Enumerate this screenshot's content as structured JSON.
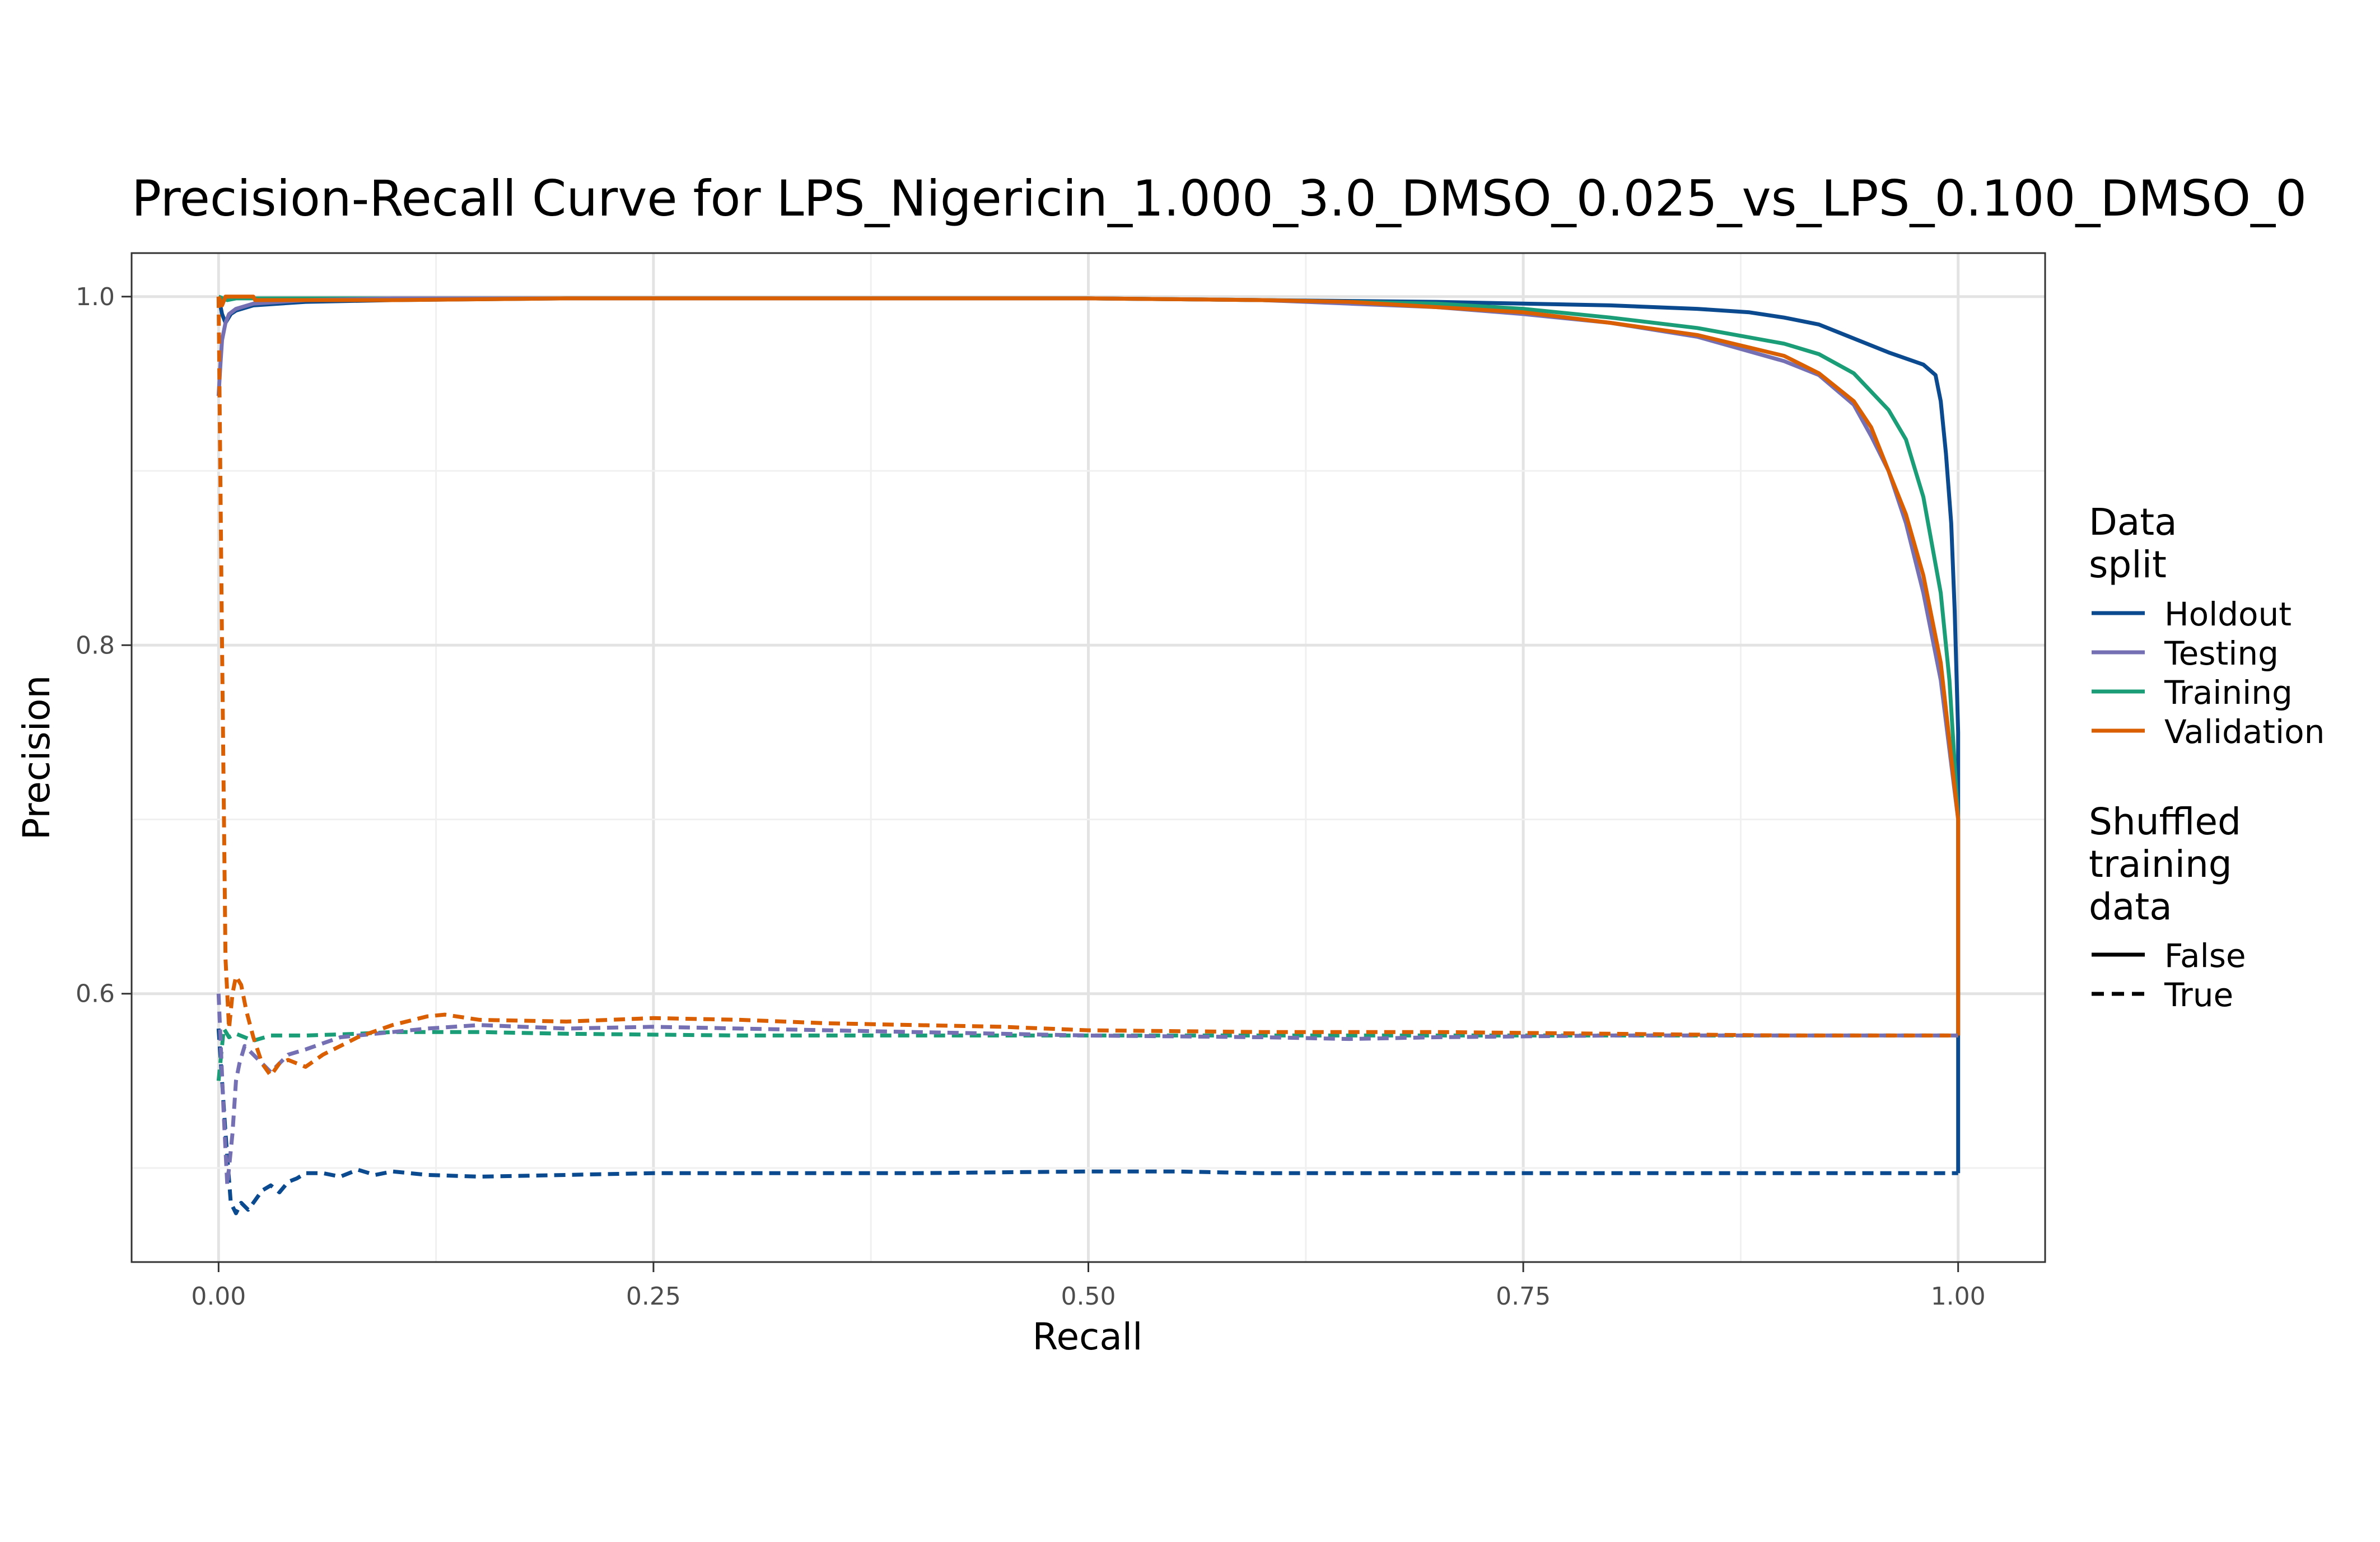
{
  "chart_data": {
    "type": "line",
    "title": "Precision-Recall Curve for LPS_Nigericin_1.000_3.0_DMSO_0.025_vs_LPS_0.100_DMSO_0",
    "xlabel": "Recall",
    "ylabel": "Precision",
    "xlim": [
      -0.05,
      1.05
    ],
    "ylim": [
      0.446,
      1.025
    ],
    "x_ticks": [
      0.0,
      0.25,
      0.5,
      0.75,
      1.0
    ],
    "x_tick_labels": [
      "0.00",
      "0.25",
      "0.50",
      "0.75",
      "1.00"
    ],
    "y_ticks": [
      0.6,
      0.8,
      1.0
    ],
    "y_tick_labels": [
      "0.6",
      "0.8",
      "1.0"
    ],
    "grid": true,
    "legend_placement": "right",
    "legend": {
      "color_title_lines": [
        "Data",
        "split"
      ],
      "color_entries": [
        {
          "label": "Holdout",
          "color": "#0b4a8f"
        },
        {
          "label": "Testing",
          "color": "#7570b3"
        },
        {
          "label": "Training",
          "color": "#1b9e77"
        },
        {
          "label": "Validation",
          "color": "#d95f02"
        }
      ],
      "linetype_title_lines": [
        "Shuffled",
        "training",
        "data"
      ],
      "linetype_entries": [
        {
          "label": "False",
          "dash": "solid"
        },
        {
          "label": "True",
          "dash": "dashed"
        }
      ]
    },
    "series": [
      {
        "split": "Holdout",
        "shuffled": "False",
        "color": "#0b4a8f",
        "points": [
          [
            0.0,
            1.0
          ],
          [
            0.002,
            0.99
          ],
          [
            0.004,
            0.985
          ],
          [
            0.007,
            0.99
          ],
          [
            0.01,
            0.992
          ],
          [
            0.02,
            0.995
          ],
          [
            0.05,
            0.997
          ],
          [
            0.1,
            0.998
          ],
          [
            0.2,
            0.999
          ],
          [
            0.3,
            0.999
          ],
          [
            0.4,
            0.999
          ],
          [
            0.5,
            0.999
          ],
          [
            0.6,
            0.998
          ],
          [
            0.7,
            0.997
          ],
          [
            0.75,
            0.996
          ],
          [
            0.8,
            0.995
          ],
          [
            0.85,
            0.993
          ],
          [
            0.88,
            0.991
          ],
          [
            0.9,
            0.988
          ],
          [
            0.92,
            0.984
          ],
          [
            0.94,
            0.976
          ],
          [
            0.96,
            0.968
          ],
          [
            0.98,
            0.961
          ],
          [
            0.987,
            0.955
          ],
          [
            0.99,
            0.94
          ],
          [
            0.993,
            0.91
          ],
          [
            0.996,
            0.87
          ],
          [
            0.998,
            0.82
          ],
          [
            1.0,
            0.75
          ],
          [
            1.0,
            0.497
          ]
        ]
      },
      {
        "split": "Training",
        "shuffled": "False",
        "color": "#1b9e77",
        "points": [
          [
            0.0,
            1.0
          ],
          [
            0.005,
            0.998
          ],
          [
            0.01,
            0.999
          ],
          [
            0.05,
            0.999
          ],
          [
            0.1,
            0.999
          ],
          [
            0.2,
            0.999
          ],
          [
            0.3,
            0.999
          ],
          [
            0.4,
            0.999
          ],
          [
            0.5,
            0.999
          ],
          [
            0.6,
            0.998
          ],
          [
            0.65,
            0.997
          ],
          [
            0.7,
            0.996
          ],
          [
            0.75,
            0.993
          ],
          [
            0.8,
            0.988
          ],
          [
            0.85,
            0.982
          ],
          [
            0.9,
            0.973
          ],
          [
            0.92,
            0.967
          ],
          [
            0.94,
            0.956
          ],
          [
            0.96,
            0.935
          ],
          [
            0.97,
            0.918
          ],
          [
            0.98,
            0.885
          ],
          [
            0.99,
            0.83
          ],
          [
            0.995,
            0.78
          ],
          [
            1.0,
            0.7
          ],
          [
            1.0,
            0.576
          ]
        ]
      },
      {
        "split": "Testing",
        "shuffled": "False",
        "color": "#7570b3",
        "points": [
          [
            0.0,
            0.943
          ],
          [
            0.001,
            0.96
          ],
          [
            0.002,
            0.975
          ],
          [
            0.004,
            0.985
          ],
          [
            0.006,
            0.99
          ],
          [
            0.01,
            0.993
          ],
          [
            0.02,
            0.996
          ],
          [
            0.05,
            0.998
          ],
          [
            0.1,
            0.999
          ],
          [
            0.3,
            0.999
          ],
          [
            0.5,
            0.999
          ],
          [
            0.6,
            0.998
          ],
          [
            0.65,
            0.996
          ],
          [
            0.7,
            0.994
          ],
          [
            0.75,
            0.99
          ],
          [
            0.8,
            0.985
          ],
          [
            0.85,
            0.977
          ],
          [
            0.9,
            0.963
          ],
          [
            0.92,
            0.955
          ],
          [
            0.94,
            0.938
          ],
          [
            0.95,
            0.92
          ],
          [
            0.96,
            0.9
          ],
          [
            0.97,
            0.87
          ],
          [
            0.98,
            0.83
          ],
          [
            0.99,
            0.78
          ],
          [
            1.0,
            0.7
          ],
          [
            1.0,
            0.576
          ]
        ]
      },
      {
        "split": "Validation",
        "shuffled": "False",
        "color": "#d95f02",
        "points": [
          [
            0.0,
            1.0
          ],
          [
            0.002,
            0.995
          ],
          [
            0.004,
            1.0
          ],
          [
            0.02,
            1.0
          ],
          [
            0.021,
            0.998
          ],
          [
            0.05,
            0.998
          ],
          [
            0.1,
            0.998
          ],
          [
            0.2,
            0.999
          ],
          [
            0.3,
            0.999
          ],
          [
            0.4,
            0.999
          ],
          [
            0.5,
            0.999
          ],
          [
            0.6,
            0.998
          ],
          [
            0.65,
            0.997
          ],
          [
            0.7,
            0.994
          ],
          [
            0.75,
            0.991
          ],
          [
            0.8,
            0.985
          ],
          [
            0.85,
            0.978
          ],
          [
            0.9,
            0.966
          ],
          [
            0.92,
            0.956
          ],
          [
            0.94,
            0.94
          ],
          [
            0.95,
            0.925
          ],
          [
            0.96,
            0.9
          ],
          [
            0.97,
            0.875
          ],
          [
            0.98,
            0.84
          ],
          [
            0.99,
            0.79
          ],
          [
            1.0,
            0.7
          ],
          [
            1.0,
            0.576
          ]
        ]
      },
      {
        "split": "Holdout",
        "shuffled": "True",
        "color": "#0b4a8f",
        "points": [
          [
            0.0,
            0.58
          ],
          [
            0.004,
            0.52
          ],
          [
            0.007,
            0.48
          ],
          [
            0.01,
            0.474
          ],
          [
            0.013,
            0.48
          ],
          [
            0.017,
            0.476
          ],
          [
            0.02,
            0.48
          ],
          [
            0.025,
            0.487
          ],
          [
            0.03,
            0.49
          ],
          [
            0.035,
            0.486
          ],
          [
            0.04,
            0.492
          ],
          [
            0.045,
            0.494
          ],
          [
            0.05,
            0.497
          ],
          [
            0.06,
            0.497
          ],
          [
            0.07,
            0.495
          ],
          [
            0.08,
            0.499
          ],
          [
            0.09,
            0.496
          ],
          [
            0.1,
            0.498
          ],
          [
            0.12,
            0.496
          ],
          [
            0.15,
            0.495
          ],
          [
            0.2,
            0.496
          ],
          [
            0.25,
            0.497
          ],
          [
            0.3,
            0.497
          ],
          [
            0.4,
            0.497
          ],
          [
            0.5,
            0.498
          ],
          [
            0.55,
            0.498
          ],
          [
            0.6,
            0.497
          ],
          [
            0.7,
            0.497
          ],
          [
            0.8,
            0.497
          ],
          [
            0.9,
            0.497
          ],
          [
            1.0,
            0.497
          ]
        ]
      },
      {
        "split": "Training",
        "shuffled": "True",
        "color": "#1b9e77",
        "points": [
          [
            0.0,
            0.55
          ],
          [
            0.003,
            0.58
          ],
          [
            0.006,
            0.575
          ],
          [
            0.01,
            0.577
          ],
          [
            0.02,
            0.573
          ],
          [
            0.03,
            0.576
          ],
          [
            0.05,
            0.576
          ],
          [
            0.08,
            0.577
          ],
          [
            0.1,
            0.578
          ],
          [
            0.15,
            0.578
          ],
          [
            0.2,
            0.577
          ],
          [
            0.3,
            0.576
          ],
          [
            0.4,
            0.576
          ],
          [
            0.5,
            0.576
          ],
          [
            0.6,
            0.576
          ],
          [
            0.7,
            0.576
          ],
          [
            0.8,
            0.576
          ],
          [
            0.9,
            0.576
          ],
          [
            1.0,
            0.576
          ]
        ]
      },
      {
        "split": "Testing",
        "shuffled": "True",
        "color": "#7570b3",
        "points": [
          [
            0.0,
            0.6
          ],
          [
            0.003,
            0.53
          ],
          [
            0.005,
            0.49
          ],
          [
            0.008,
            0.52
          ],
          [
            0.01,
            0.55
          ],
          [
            0.012,
            0.56
          ],
          [
            0.015,
            0.57
          ],
          [
            0.02,
            0.565
          ],
          [
            0.025,
            0.56
          ],
          [
            0.03,
            0.555
          ],
          [
            0.04,
            0.565
          ],
          [
            0.05,
            0.568
          ],
          [
            0.07,
            0.575
          ],
          [
            0.1,
            0.578
          ],
          [
            0.12,
            0.58
          ],
          [
            0.15,
            0.582
          ],
          [
            0.2,
            0.58
          ],
          [
            0.25,
            0.581
          ],
          [
            0.3,
            0.58
          ],
          [
            0.4,
            0.578
          ],
          [
            0.5,
            0.576
          ],
          [
            0.6,
            0.575
          ],
          [
            0.65,
            0.574
          ],
          [
            0.7,
            0.575
          ],
          [
            0.8,
            0.576
          ],
          [
            0.9,
            0.576
          ],
          [
            1.0,
            0.576
          ]
        ]
      },
      {
        "split": "Validation",
        "shuffled": "True",
        "color": "#d95f02",
        "points": [
          [
            0.0,
            1.0
          ],
          [
            0.002,
            0.8
          ],
          [
            0.004,
            0.62
          ],
          [
            0.006,
            0.58
          ],
          [
            0.008,
            0.6
          ],
          [
            0.01,
            0.61
          ],
          [
            0.013,
            0.605
          ],
          [
            0.016,
            0.59
          ],
          [
            0.02,
            0.575
          ],
          [
            0.025,
            0.56
          ],
          [
            0.03,
            0.553
          ],
          [
            0.035,
            0.56
          ],
          [
            0.04,
            0.562
          ],
          [
            0.05,
            0.558
          ],
          [
            0.06,
            0.565
          ],
          [
            0.07,
            0.57
          ],
          [
            0.08,
            0.575
          ],
          [
            0.1,
            0.582
          ],
          [
            0.12,
            0.587
          ],
          [
            0.13,
            0.588
          ],
          [
            0.15,
            0.585
          ],
          [
            0.2,
            0.584
          ],
          [
            0.25,
            0.586
          ],
          [
            0.3,
            0.585
          ],
          [
            0.35,
            0.583
          ],
          [
            0.4,
            0.582
          ],
          [
            0.45,
            0.581
          ],
          [
            0.5,
            0.579
          ],
          [
            0.6,
            0.578
          ],
          [
            0.7,
            0.578
          ],
          [
            0.8,
            0.577
          ],
          [
            0.9,
            0.576
          ],
          [
            1.0,
            0.576
          ]
        ]
      }
    ]
  }
}
